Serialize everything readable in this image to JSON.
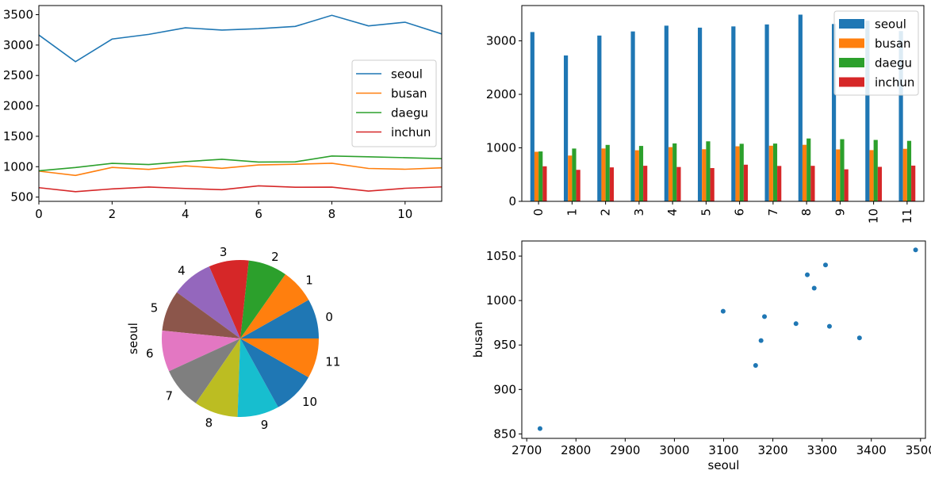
{
  "colors": [
    "#1f77b4",
    "#ff7f0e",
    "#2ca02c",
    "#d62728",
    "#9467bd",
    "#8c564b",
    "#e377c2",
    "#7f7f7f",
    "#bcbd22",
    "#17becf",
    "#1f77b4",
    "#ff7f0e"
  ],
  "chart_data": [
    {
      "type": "line",
      "x": [
        0,
        1,
        2,
        3,
        4,
        5,
        6,
        7,
        8,
        9,
        10,
        11
      ],
      "series": [
        {
          "name": "seoul",
          "values": [
            3165,
            2727,
            3099,
            3176,
            3284,
            3247,
            3270,
            3307,
            3490,
            3315,
            3376,
            3183
          ]
        },
        {
          "name": "busan",
          "values": [
            927,
            856,
            988,
            955,
            1014,
            974,
            1029,
            1040,
            1057,
            971,
            958,
            982
          ]
        },
        {
          "name": "daegu",
          "values": [
            933,
            987,
            1055,
            1036,
            1083,
            1122,
            1076,
            1080,
            1175,
            1162,
            1148,
            1131
          ]
        },
        {
          "name": "inchun",
          "values": [
            655,
            589,
            635,
            665,
            642,
            622,
            685,
            662,
            664,
            599,
            645,
            668
          ]
        }
      ],
      "xlim": [
        0,
        11
      ],
      "ylim": [
        430,
        3650
      ],
      "xticks": [
        0,
        2,
        4,
        6,
        8,
        10
      ],
      "yticks": [
        500,
        1000,
        1500,
        2000,
        2500,
        3000,
        3500
      ],
      "legend": "center-right"
    },
    {
      "type": "bar",
      "categories": [
        "0",
        "1",
        "2",
        "3",
        "4",
        "5",
        "6",
        "7",
        "8",
        "9",
        "10",
        "11"
      ],
      "series_ref": "same as line chart",
      "ylim": [
        0,
        3660
      ],
      "yticks": [
        0,
        1000,
        2000,
        3000
      ],
      "legend": "top-right"
    },
    {
      "type": "pie",
      "ylabel": "seoul",
      "labels": [
        "0",
        "1",
        "2",
        "3",
        "4",
        "5",
        "6",
        "7",
        "8",
        "9",
        "10",
        "11"
      ],
      "values": [
        3165,
        2727,
        3099,
        3176,
        3284,
        3247,
        3270,
        3307,
        3490,
        3315,
        3376,
        3183
      ]
    },
    {
      "type": "scatter",
      "xlabel": "seoul",
      "ylabel": "busan",
      "xlim": [
        2690,
        3510
      ],
      "ylim": [
        845,
        1067
      ],
      "xticks": [
        2700,
        2800,
        2900,
        3000,
        3100,
        3200,
        3300,
        3400,
        3500
      ],
      "yticks": [
        850,
        900,
        950,
        1000,
        1050
      ],
      "points_ref": "seoul vs busan series"
    }
  ]
}
